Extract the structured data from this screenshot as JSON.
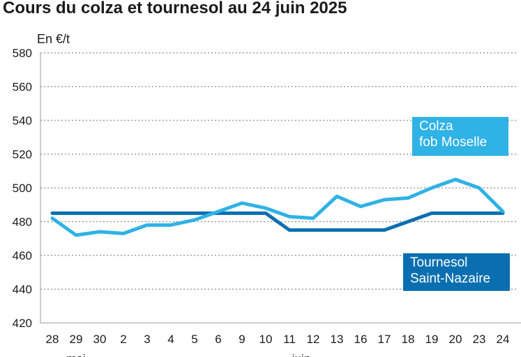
{
  "chart_data": {
    "type": "line",
    "title": "Cours du colza et tournesol au 24 juin 2025",
    "unit_label": "En €/t",
    "ylim": [
      420,
      580
    ],
    "yticks": [
      420,
      440,
      460,
      480,
      500,
      520,
      540,
      560,
      580
    ],
    "grid": "horizontal dotted",
    "categories": [
      "28",
      "29",
      "30",
      "2",
      "3",
      "4",
      "5",
      "6",
      "9",
      "10",
      "11",
      "12",
      "13",
      "16",
      "17",
      "18",
      "19",
      "20",
      "23",
      "24"
    ],
    "month_labels": [
      {
        "label": "mai",
        "at_index": 1
      },
      {
        "label": "juin",
        "at_index": 10.5
      }
    ],
    "series": [
      {
        "name_lines": [
          "Colza",
          "fob Moselle"
        ],
        "color": "#2fb2e6",
        "values": [
          482,
          472,
          474,
          473,
          478,
          478,
          481,
          486,
          491,
          488,
          483,
          482,
          495,
          489,
          493,
          494,
          500,
          505,
          500,
          486
        ]
      },
      {
        "name_lines": [
          "Tournesol",
          "Saint-Nazaire"
        ],
        "color": "#0a6fb0",
        "values": [
          485,
          485,
          485,
          485,
          485,
          485,
          485,
          485,
          485,
          485,
          475,
          475,
          475,
          475,
          475,
          480,
          485,
          485,
          485,
          485
        ]
      }
    ]
  }
}
